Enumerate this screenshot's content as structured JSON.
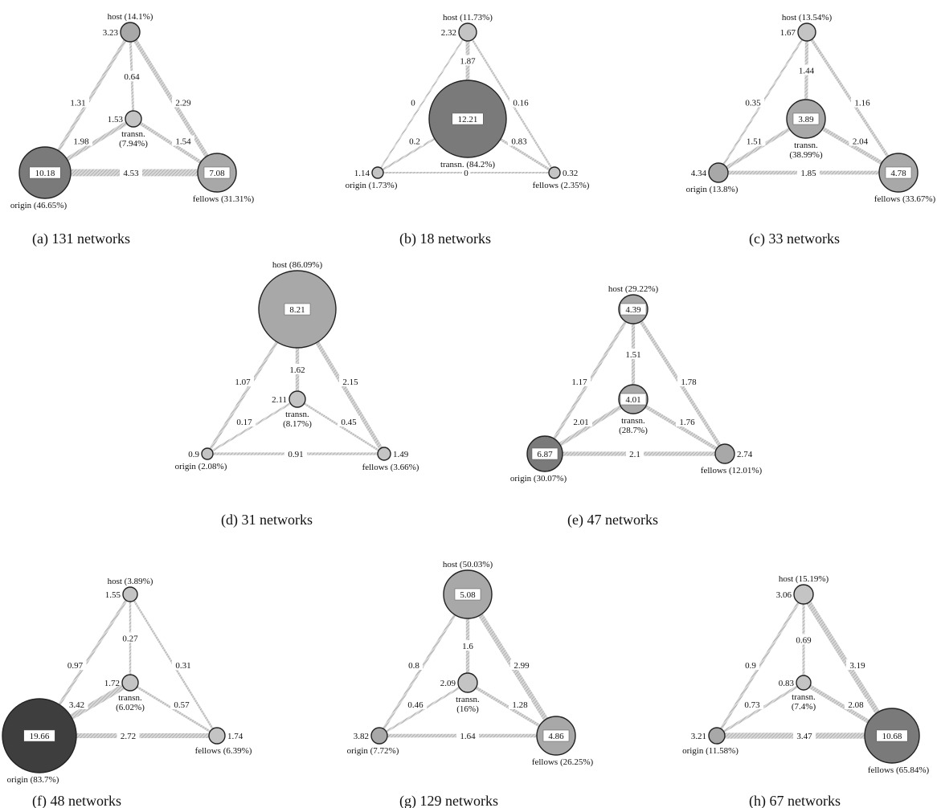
{
  "colors": {
    "edge_fill": "#d8d8d8",
    "edge_hatch": "#9a9a9a",
    "node_light": "#c4c4c4",
    "node_mid": "#a8a8a8",
    "node_dark": "#7a7a7a",
    "node_darkest": "#3e3e3e",
    "stroke": "#222222"
  },
  "panels": [
    {
      "caption": "(a)  131 networks",
      "nodes": {
        "host": {
          "label": "host (14.1%)",
          "value": "3.23",
          "share": 14.1
        },
        "transn": {
          "label": "transn.",
          "label2": "(7.94%)",
          "value": "1.53",
          "share": 7.94
        },
        "origin": {
          "label": "origin (46.65%)",
          "value": "10.18",
          "share": 46.65
        },
        "fellows": {
          "label": "fellows (31.31%)",
          "value": "7.08",
          "share": 31.31
        }
      },
      "edges": {
        "host_transn": "0.64",
        "host_origin": "1.31",
        "host_fellows": "2.29",
        "transn_origin": "1.98",
        "transn_fellows": "1.54",
        "origin_fellows": "4.53"
      }
    },
    {
      "caption": "(b)  18 networks",
      "nodes": {
        "host": {
          "label": "host (11.73%)",
          "value": "2.32",
          "share": 11.73
        },
        "transn": {
          "label": "transn. (84.2%)",
          "label2": "",
          "value": "12.21",
          "share": 84.2
        },
        "origin": {
          "label": "origin (1.73%)",
          "value": "1.14",
          "share": 1.73
        },
        "fellows": {
          "label": "fellows (2.35%)",
          "value": "0.32",
          "share": 2.35
        }
      },
      "edges": {
        "host_transn": "1.87",
        "host_origin": "0",
        "host_fellows": "0.16",
        "transn_origin": "0.2",
        "transn_fellows": "0.83",
        "origin_fellows": "0"
      }
    },
    {
      "caption": "(c)  33 networks",
      "nodes": {
        "host": {
          "label": "host (13.54%)",
          "value": "1.67",
          "share": 13.54
        },
        "transn": {
          "label": "transn.",
          "label2": "(38.99%)",
          "value": "3.89",
          "share": 38.99
        },
        "origin": {
          "label": "origin (13.8%)",
          "value": "4.34",
          "share": 13.8
        },
        "fellows": {
          "label": "fellows (33.67%)",
          "value": "4.78",
          "share": 33.67
        }
      },
      "edges": {
        "host_transn": "1.44",
        "host_origin": "0.35",
        "host_fellows": "1.16",
        "transn_origin": "1.51",
        "transn_fellows": "2.04",
        "origin_fellows": "1.85"
      }
    },
    {
      "caption": "(d)  31 networks",
      "nodes": {
        "host": {
          "label": "host (86.09%)",
          "value": "8.21",
          "share": 86.09
        },
        "transn": {
          "label": "transn.",
          "label2": "(8.17%)",
          "value": "2.11",
          "share": 8.17
        },
        "origin": {
          "label": "origin (2.08%)",
          "value": "0.9",
          "share": 2.08
        },
        "fellows": {
          "label": "fellows (3.66%)",
          "value": "1.49",
          "share": 3.66
        }
      },
      "edges": {
        "host_transn": "1.62",
        "host_origin": "1.07",
        "host_fellows": "2.15",
        "transn_origin": "0.17",
        "transn_fellows": "0.45",
        "origin_fellows": "0.91"
      }
    },
    {
      "caption": "(e)  47 networks",
      "nodes": {
        "host": {
          "label": "host (29.22%)",
          "value": "4.39",
          "share": 29.22
        },
        "transn": {
          "label": "transn.",
          "label2": "(28.7%)",
          "value": "4.01",
          "share": 28.7
        },
        "origin": {
          "label": "origin (30.07%)",
          "value": "6.87",
          "share": 30.07
        },
        "fellows": {
          "label": "fellows (12.01%)",
          "value": "2.74",
          "share": 12.01
        }
      },
      "edges": {
        "host_transn": "1.51",
        "host_origin": "1.17",
        "host_fellows": "1.78",
        "transn_origin": "2.01",
        "transn_fellows": "1.76",
        "origin_fellows": "2.1"
      }
    },
    {
      "caption": "(f)  48 networks",
      "nodes": {
        "host": {
          "label": "host (3.89%)",
          "value": "1.55",
          "share": 3.89
        },
        "transn": {
          "label": "transn.",
          "label2": "(6.02%)",
          "value": "1.72",
          "share": 6.02
        },
        "origin": {
          "label": "origin (83.7%)",
          "value": "19.66",
          "share": 83.7
        },
        "fellows": {
          "label": "fellows (6.39%)",
          "value": "1.74",
          "share": 6.39
        }
      },
      "edges": {
        "host_transn": "0.27",
        "host_origin": "0.97",
        "host_fellows": "0.31",
        "transn_origin": "3.42",
        "transn_fellows": "0.57",
        "origin_fellows": "2.72"
      }
    },
    {
      "caption": "(g)  129 networks",
      "nodes": {
        "host": {
          "label": "host (50.03%)",
          "value": "5.08",
          "share": 50.03
        },
        "transn": {
          "label": "transn.",
          "label2": "(16%)",
          "value": "2.09",
          "share": 16
        },
        "origin": {
          "label": "origin (7.72%)",
          "value": "3.82",
          "share": 7.72
        },
        "fellows": {
          "label": "fellows (26.25%)",
          "value": "4.86",
          "share": 26.25
        }
      },
      "edges": {
        "host_transn": "1.6",
        "host_origin": "0.8",
        "host_fellows": "2.99",
        "transn_origin": "0.46",
        "transn_fellows": "1.28",
        "origin_fellows": "1.64"
      }
    },
    {
      "caption": "(h)  67 networks",
      "nodes": {
        "host": {
          "label": "host (15.19%)",
          "value": "3.06",
          "share": 15.19
        },
        "transn": {
          "label": "transn.",
          "label2": "(7.4%)",
          "value": "0.83",
          "share": 7.4
        },
        "origin": {
          "label": "origin (11.58%)",
          "value": "3.21",
          "share": 11.58
        },
        "fellows": {
          "label": "fellows (65.84%)",
          "value": "10.68",
          "share": 65.84
        }
      },
      "edges": {
        "host_transn": "0.69",
        "host_origin": "0.9",
        "host_fellows": "3.19",
        "transn_origin": "0.73",
        "transn_fellows": "2.08",
        "origin_fellows": "3.47"
      }
    }
  ]
}
